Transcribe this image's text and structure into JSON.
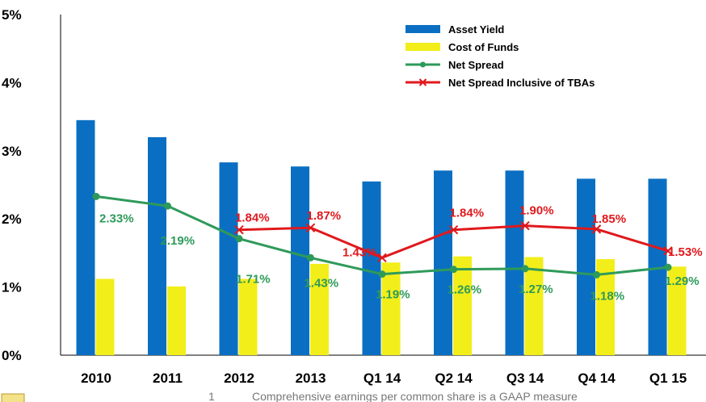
{
  "chart_data": {
    "type": "bar",
    "categories": [
      "2010",
      "2011",
      "2012",
      "2013",
      "Q1 14",
      "Q2 14",
      "Q3 14",
      "Q4 14",
      "Q1 15"
    ],
    "y_ticks": [
      "0%",
      "1%",
      "2%",
      "3%",
      "4%",
      "5%"
    ],
    "ylim": [
      0,
      5
    ],
    "grid": false,
    "legend_position": "top-right",
    "series": [
      {
        "name": "Asset Yield",
        "type": "bar",
        "color": "#0a6fc2",
        "values": [
          3.45,
          3.2,
          2.83,
          2.77,
          2.55,
          2.71,
          2.71,
          2.59,
          2.59
        ]
      },
      {
        "name": "Cost of Funds",
        "type": "bar",
        "color": "#f2ee1a",
        "values": [
          1.12,
          1.01,
          1.12,
          1.34,
          1.36,
          1.45,
          1.44,
          1.41,
          1.3
        ]
      },
      {
        "name": "Net Spread",
        "type": "line",
        "marker": "dot",
        "color": "#2e9a5a",
        "values": [
          2.33,
          2.19,
          1.71,
          1.43,
          1.19,
          1.26,
          1.27,
          1.18,
          1.29
        ],
        "labels": [
          "2.33%",
          "2.19%",
          "1.71%",
          "1.43%",
          "1.19%",
          "1.26%",
          "1.27%",
          "1.18%",
          "1.29%"
        ]
      },
      {
        "name": "Net Spread Inclusive of TBAs",
        "type": "line",
        "marker": "x",
        "color": "#e0191d",
        "values": [
          null,
          null,
          1.84,
          1.87,
          1.43,
          1.84,
          1.9,
          1.85,
          1.53
        ],
        "labels": [
          "",
          "",
          "1.84%",
          "1.87%",
          "1.43%",
          "1.84%",
          "1.90%",
          "1.85%",
          "1.53%"
        ]
      }
    ]
  },
  "footnote": {
    "number": "1",
    "text": "Comprehensive earnings per common share is a GAAP measure"
  }
}
